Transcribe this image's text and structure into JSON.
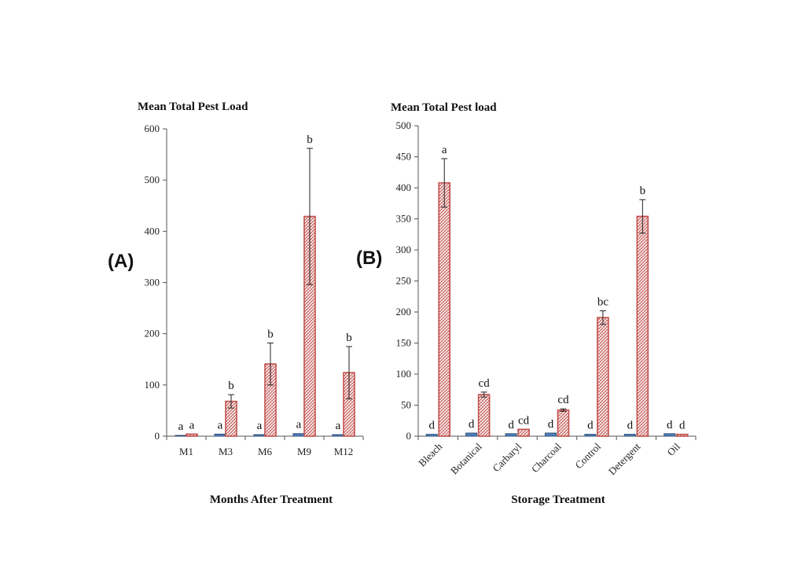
{
  "chart_data": [
    {
      "panel_label": "(A)",
      "type": "bar",
      "title": "Mean Total Pest Load",
      "xlabel": "Months After Treatment",
      "ylabel": "",
      "ylim": [
        0,
        600
      ],
      "yticks": [
        "0",
        "100",
        "200",
        "300",
        "400",
        "500",
        "600"
      ],
      "categories": [
        "M1",
        "M3",
        "M6",
        "M9",
        "M12"
      ],
      "series": [
        {
          "color": "#4f81bd",
          "pattern": "solid",
          "values": [
            1,
            4,
            3,
            5,
            3
          ],
          "error": [
            0,
            0,
            0,
            0,
            0
          ],
          "labels": [
            "a",
            "a",
            "a",
            "a",
            "a"
          ]
        },
        {
          "color": "#c0504d",
          "pattern": "cross-hatch",
          "values": [
            4,
            68,
            141,
            429,
            124
          ],
          "error": [
            0,
            13,
            41,
            133,
            51
          ],
          "labels": [
            "a",
            "b",
            "b",
            "b",
            "b"
          ]
        }
      ]
    },
    {
      "panel_label": "(B)",
      "type": "bar",
      "title": "Mean Total Pest load",
      "xlabel": "Storage Treatment",
      "ylabel": "",
      "ylim": [
        0,
        500
      ],
      "yticks": [
        "0",
        "50",
        "100",
        "150",
        "200",
        "250",
        "300",
        "350",
        "400",
        "450",
        "500"
      ],
      "categories": [
        "Bleach",
        "Botanical",
        "Carbaryl",
        "Charcoal",
        "Control",
        "Detergent",
        "Oil"
      ],
      "series": [
        {
          "color": "#4f81bd",
          "pattern": "solid",
          "values": [
            3,
            5,
            4,
            5,
            3,
            3,
            4
          ],
          "error": [
            0,
            0,
            0,
            0,
            0,
            0,
            0
          ],
          "labels": [
            "d",
            "d",
            "d",
            "d",
            "d",
            "d",
            "d"
          ]
        },
        {
          "color": "#c0504d",
          "pattern": "cross-hatch",
          "values": [
            408,
            67,
            11,
            42,
            191,
            354,
            3
          ],
          "error": [
            39,
            4,
            0,
            2,
            11,
            27,
            0
          ],
          "labels": [
            "a",
            "cd",
            "cd",
            "cd",
            "bc",
            "b",
            "d"
          ]
        }
      ]
    }
  ]
}
